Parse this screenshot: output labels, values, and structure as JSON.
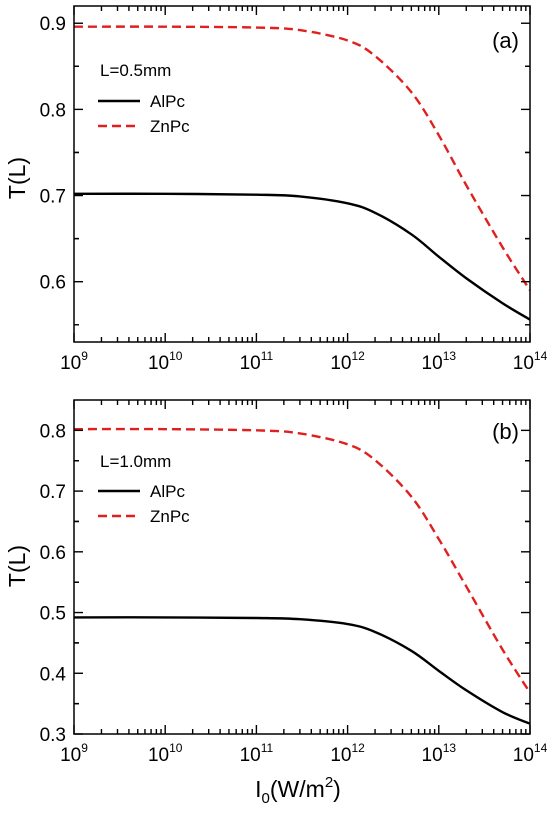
{
  "chart_data": [
    {
      "type": "line",
      "panel_label": "(a)",
      "legend_title": "L=0.5mm",
      "legend_position": "top-left",
      "xlabel_base": "I",
      "xlabel_sub": "0",
      "xlabel_mid": "(W/m",
      "xlabel_sup": "2",
      "xlabel_end": ")",
      "ylabel": "T(L)",
      "x_scale": "log",
      "xlim": [
        1000000000.0,
        100000000000000.0
      ],
      "ylim": [
        0.53,
        0.92
      ],
      "x_ticks": [
        {
          "base": "10",
          "exp": "9",
          "value": 1000000000.0
        },
        {
          "base": "10",
          "exp": "10",
          "value": 10000000000.0
        },
        {
          "base": "10",
          "exp": "11",
          "value": 100000000000.0
        },
        {
          "base": "10",
          "exp": "12",
          "value": 1000000000000.0
        },
        {
          "base": "10",
          "exp": "13",
          "value": 10000000000000.0
        },
        {
          "base": "10",
          "exp": "14",
          "value": 100000000000000.0
        }
      ],
      "y_ticks": [
        {
          "label": "0.6",
          "value": 0.6
        },
        {
          "label": "0.7",
          "value": 0.7
        },
        {
          "label": "0.8",
          "value": 0.8
        },
        {
          "label": "0.9",
          "value": 0.9
        }
      ],
      "grid": false,
      "series": [
        {
          "name": "AlPc",
          "style": "solid",
          "color": "#000000",
          "x": [
            1000000000.0,
            10000000000.0,
            100000000000.0,
            300000000000.0,
            1000000000000.0,
            2000000000000.0,
            5000000000000.0,
            10000000000000.0,
            20000000000000.0,
            50000000000000.0,
            100000000000000.0
          ],
          "y": [
            0.702,
            0.702,
            0.701,
            0.699,
            0.691,
            0.68,
            0.655,
            0.629,
            0.604,
            0.575,
            0.556
          ]
        },
        {
          "name": "ZnPc",
          "style": "dashed",
          "color": "#e02020",
          "x": [
            1000000000.0,
            10000000000.0,
            100000000000.0,
            300000000000.0,
            1000000000000.0,
            2000000000000.0,
            5000000000000.0,
            10000000000000.0,
            20000000000000.0,
            50000000000000.0,
            100000000000000.0
          ],
          "y": [
            0.896,
            0.896,
            0.895,
            0.892,
            0.88,
            0.862,
            0.82,
            0.77,
            0.712,
            0.64,
            0.59
          ]
        }
      ]
    },
    {
      "type": "line",
      "panel_label": "(b)",
      "legend_title": "L=1.0mm",
      "legend_position": "top-left",
      "xlabel_base": "I",
      "xlabel_sub": "0",
      "xlabel_mid": "(W/m",
      "xlabel_sup": "2",
      "xlabel_end": ")",
      "ylabel": "T(L)",
      "x_scale": "log",
      "xlim": [
        1000000000.0,
        100000000000000.0
      ],
      "ylim": [
        0.3,
        0.85
      ],
      "x_ticks": [
        {
          "base": "10",
          "exp": "9",
          "value": 1000000000.0
        },
        {
          "base": "10",
          "exp": "10",
          "value": 10000000000.0
        },
        {
          "base": "10",
          "exp": "11",
          "value": 100000000000.0
        },
        {
          "base": "10",
          "exp": "12",
          "value": 1000000000000.0
        },
        {
          "base": "10",
          "exp": "13",
          "value": 10000000000000.0
        },
        {
          "base": "10",
          "exp": "14",
          "value": 100000000000000.0
        }
      ],
      "y_ticks": [
        {
          "label": "0.3",
          "value": 0.3
        },
        {
          "label": "0.4",
          "value": 0.4
        },
        {
          "label": "0.5",
          "value": 0.5
        },
        {
          "label": "0.6",
          "value": 0.6
        },
        {
          "label": "0.7",
          "value": 0.7
        },
        {
          "label": "0.8",
          "value": 0.8
        }
      ],
      "grid": false,
      "series": [
        {
          "name": "AlPc",
          "style": "solid",
          "color": "#000000",
          "x": [
            1000000000.0,
            10000000000.0,
            100000000000.0,
            300000000000.0,
            1000000000000.0,
            2000000000000.0,
            5000000000000.0,
            10000000000000.0,
            20000000000000.0,
            50000000000000.0,
            100000000000000.0
          ],
          "y": [
            0.492,
            0.492,
            0.491,
            0.489,
            0.481,
            0.468,
            0.437,
            0.404,
            0.372,
            0.336,
            0.317
          ]
        },
        {
          "name": "ZnPc",
          "style": "dashed",
          "color": "#e02020",
          "x": [
            1000000000.0,
            10000000000.0,
            100000000000.0,
            300000000000.0,
            1000000000000.0,
            2000000000000.0,
            5000000000000.0,
            10000000000000.0,
            20000000000000.0,
            50000000000000.0,
            100000000000000.0
          ],
          "y": [
            0.802,
            0.802,
            0.8,
            0.795,
            0.777,
            0.751,
            0.691,
            0.621,
            0.543,
            0.439,
            0.368
          ]
        }
      ]
    }
  ]
}
